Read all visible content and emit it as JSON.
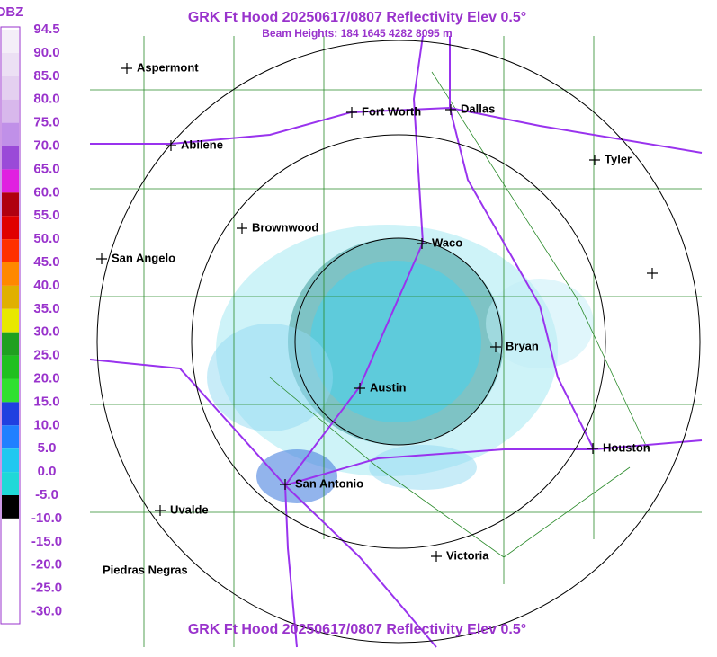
{
  "header": {
    "title": "GRK Ft Hood 20250617/0807 Reflectivity Elev 0.5°",
    "subtitle": "Beam Heights: 184 1645 4282 8095 m"
  },
  "footer": {
    "title": "GRK Ft Hood 20250617/0807 Reflectivity Elev 0.5°"
  },
  "legend": {
    "title": "DBZ",
    "labels": [
      "94.5",
      "90.0",
      "85.0",
      "80.0",
      "75.0",
      "70.0",
      "65.0",
      "60.0",
      "55.0",
      "50.0",
      "45.0",
      "40.0",
      "35.0",
      "30.0",
      "25.0",
      "20.0",
      "15.0",
      "10.0",
      "5.0",
      "0.0",
      "-5.0",
      "-10.0",
      "-15.0",
      "-20.0",
      "-25.0",
      "-30.0"
    ]
  },
  "cities": [
    "Aspermont",
    "Abilene",
    "Fort Worth",
    "Dallas",
    "Tyler",
    "Brownwood",
    "Waco",
    "San Angelo",
    "Bryan",
    "Austin",
    "Houston",
    "San Antonio",
    "Uvalde",
    "Victoria",
    "Piedras Negras"
  ]
}
